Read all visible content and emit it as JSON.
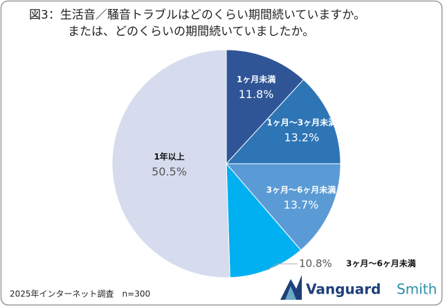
{
  "chart_data": {
    "type": "pie",
    "title": [
      "図3：生活音／騒音トラブルはどのくらい期間続いていますか。",
      "または、どのくらいの期間続いていましたか。"
    ],
    "categories": [
      "1ヶ月未満",
      "1ヶ月～3ヶ月未満",
      "3ヶ月～6ヶ月未満",
      "3ヶ月～6ヶ月未満",
      "1年以上"
    ],
    "values": [
      11.8,
      13.2,
      13.7,
      10.8,
      50.5
    ],
    "value_labels": [
      "11.8%",
      "13.2%",
      "13.7%",
      "10.8%",
      "50.5%"
    ],
    "colors": [
      "#2f5597",
      "#2e75b6",
      "#5b9bd5",
      "#00b0f0",
      "#d6dcee"
    ],
    "note": "2025年インターネット調査　n=300",
    "logo": [
      "Vanguard",
      "Smith"
    ]
  }
}
